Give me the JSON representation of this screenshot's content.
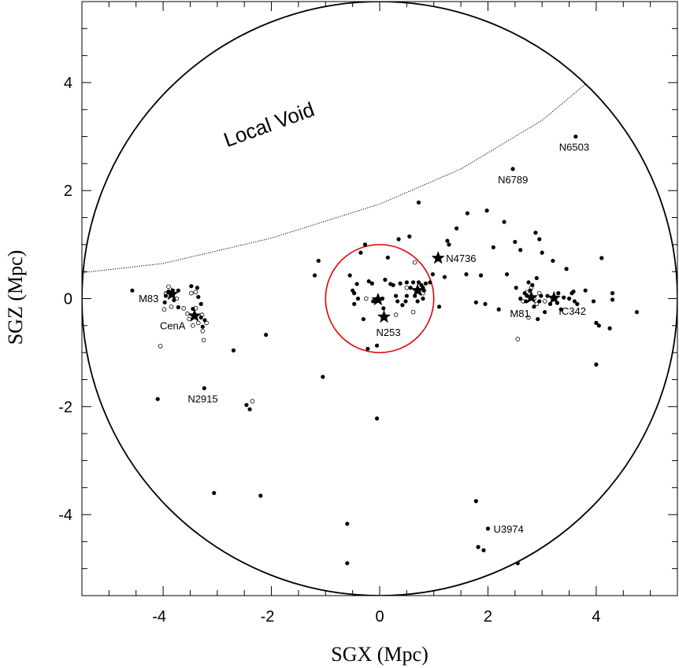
{
  "chart_data": {
    "type": "scatter",
    "title": "",
    "xlabel": "SGX (Mpc)",
    "ylabel": "SGZ (Mpc)",
    "xlim": [
      -5.5,
      5.5
    ],
    "ylim": [
      -5.5,
      5.5
    ],
    "x_ticks": [
      "-4",
      "-2",
      "0",
      "2",
      "4"
    ],
    "y_ticks": [
      "-4",
      "-2",
      "0",
      "2",
      "4"
    ],
    "x_tick_values": [
      -4,
      -2,
      0,
      2,
      4
    ],
    "y_tick_values": [
      -4,
      -2,
      0,
      2,
      4
    ],
    "grid": false,
    "annotation": "Local Void",
    "reference_circles": [
      {
        "center": [
          0,
          0
        ],
        "radius": 5.5,
        "color": "#000000"
      },
      {
        "center": [
          0,
          0
        ],
        "radius": 1.0,
        "color": "#e00000"
      }
    ],
    "void_boundary": [
      [
        -5.5,
        0.48
      ],
      [
        -4,
        0.65
      ],
      [
        -2,
        1.12
      ],
      [
        0,
        1.75
      ],
      [
        1.5,
        2.4
      ],
      [
        3,
        3.3
      ],
      [
        3.8,
        3.97
      ]
    ],
    "named_galaxies": [
      {
        "label": "M83",
        "x": -3.84,
        "y": 0.08,
        "marker": "star"
      },
      {
        "label": "CenA",
        "x": -3.42,
        "y": -0.32,
        "marker": "star"
      },
      {
        "label": "N253",
        "x": 0.08,
        "y": -0.34,
        "marker": "star"
      },
      {
        "label": "N4736",
        "x": 1.08,
        "y": 0.75,
        "marker": "star"
      },
      {
        "label": "M81",
        "x": 2.8,
        "y": 0.02,
        "marker": "star"
      },
      {
        "label": "IC342",
        "x": 3.22,
        "y": 0.01,
        "marker": "star"
      },
      {
        "label": "N6503",
        "x": 3.62,
        "y": 3.0,
        "marker": "dot"
      },
      {
        "label": "N6789",
        "x": 2.46,
        "y": 2.4,
        "marker": "dot"
      },
      {
        "label": "N2915",
        "x": -3.24,
        "y": -1.66,
        "marker": "dot"
      },
      {
        "label": "U3974",
        "x": 2.0,
        "y": -4.26,
        "marker": "dot"
      }
    ],
    "unlabeled_stars": [
      [
        -0.03,
        -0.02
      ],
      [
        0.7,
        0.15
      ]
    ],
    "filled_points": [
      [
        -4.57,
        0.15
      ],
      [
        -4.1,
        -1.86
      ],
      [
        -3.97,
        -0.07
      ],
      [
        -3.95,
        0.05
      ],
      [
        -3.9,
        0.13
      ],
      [
        -3.82,
        0.15
      ],
      [
        -3.8,
        -0.03
      ],
      [
        -3.72,
        0.15
      ],
      [
        -3.72,
        -0.16
      ],
      [
        -3.48,
        0.23
      ],
      [
        -3.45,
        -0.19
      ],
      [
        -3.37,
        0.2
      ],
      [
        -3.35,
        0.03
      ],
      [
        -3.3,
        -0.1
      ],
      [
        -3.3,
        -0.35
      ],
      [
        -3.27,
        -0.52
      ],
      [
        -3.23,
        -0.4
      ],
      [
        -3.06,
        -3.6
      ],
      [
        -2.7,
        -0.96
      ],
      [
        -2.46,
        -1.97
      ],
      [
        -2.4,
        -2.05
      ],
      [
        -2.2,
        -3.65
      ],
      [
        -2.1,
        -0.67
      ],
      [
        -1.2,
        0.43
      ],
      [
        -1.13,
        0.7
      ],
      [
        -1.05,
        -1.45
      ],
      [
        -0.6,
        -4.17
      ],
      [
        -0.6,
        -4.9
      ],
      [
        -0.55,
        0.43
      ],
      [
        -0.5,
        0.15
      ],
      [
        -0.47,
        0.1
      ],
      [
        -0.47,
        -0.1
      ],
      [
        -0.42,
        0.27
      ],
      [
        -0.4,
        0.0
      ],
      [
        -0.35,
        0.85
      ],
      [
        -0.3,
        -0.38
      ],
      [
        -0.27,
        1.0
      ],
      [
        -0.22,
        -0.93
      ],
      [
        -0.2,
        0.32
      ],
      [
        -0.14,
        0.28
      ],
      [
        -0.12,
        -0.05
      ],
      [
        -0.05,
        -0.87
      ],
      [
        -0.05,
        -2.22
      ],
      [
        0.05,
        0.0
      ],
      [
        0.07,
        -0.18
      ],
      [
        0.1,
        0.35
      ],
      [
        0.15,
        0.76
      ],
      [
        0.2,
        0.27
      ],
      [
        0.25,
        0.25
      ],
      [
        0.3,
        0.05
      ],
      [
        0.33,
        -0.05
      ],
      [
        0.35,
        1.1
      ],
      [
        0.38,
        0.28
      ],
      [
        0.42,
        -0.12
      ],
      [
        0.48,
        -0.05
      ],
      [
        0.5,
        0.05
      ],
      [
        0.5,
        0.3
      ],
      [
        0.55,
        1.15
      ],
      [
        0.57,
        0.2
      ],
      [
        0.62,
        0.3
      ],
      [
        0.65,
        0.05
      ],
      [
        0.7,
        -0.05
      ],
      [
        0.72,
        1.78
      ],
      [
        0.72,
        0.3
      ],
      [
        0.77,
        0.25
      ],
      [
        0.8,
        0.0
      ],
      [
        0.8,
        0.2
      ],
      [
        0.82,
        0.15
      ],
      [
        0.85,
        0.28
      ],
      [
        0.93,
        0.3
      ],
      [
        0.98,
        0.45
      ],
      [
        1.1,
        -0.15
      ],
      [
        1.2,
        0.4
      ],
      [
        1.25,
        1.07
      ],
      [
        1.28,
        1.0
      ],
      [
        1.42,
        1.3
      ],
      [
        1.6,
        0.45
      ],
      [
        1.62,
        1.58
      ],
      [
        1.78,
        -0.07
      ],
      [
        1.78,
        -3.75
      ],
      [
        1.82,
        -4.6
      ],
      [
        1.87,
        0.43
      ],
      [
        1.92,
        -4.66
      ],
      [
        1.95,
        -0.1
      ],
      [
        1.98,
        1.63
      ],
      [
        2.1,
        0.95
      ],
      [
        2.2,
        -0.2
      ],
      [
        2.3,
        1.42
      ],
      [
        2.35,
        0.45
      ],
      [
        2.5,
        1.05
      ],
      [
        2.52,
        0.2
      ],
      [
        2.6,
        0.9
      ],
      [
        2.6,
        0.0
      ],
      [
        2.55,
        -4.9
      ],
      [
        2.72,
        0.05
      ],
      [
        2.75,
        0.3
      ],
      [
        2.78,
        0.15
      ],
      [
        2.82,
        0.25
      ],
      [
        2.85,
        -0.15
      ],
      [
        2.88,
        1.22
      ],
      [
        2.9,
        0.38
      ],
      [
        2.92,
        -0.38
      ],
      [
        2.95,
        1.1
      ],
      [
        2.98,
        0.05
      ],
      [
        3.0,
        0.85
      ],
      [
        3.05,
        -0.25
      ],
      [
        3.1,
        0.05
      ],
      [
        3.15,
        -0.1
      ],
      [
        3.28,
        -0.08
      ],
      [
        3.3,
        0.1
      ],
      [
        3.35,
        -0.2
      ],
      [
        3.4,
        0.02
      ],
      [
        3.45,
        0.55
      ],
      [
        3.5,
        0.0
      ],
      [
        3.55,
        0.1
      ],
      [
        3.6,
        -0.05
      ],
      [
        3.65,
        -0.1
      ],
      [
        3.8,
        0.15
      ],
      [
        3.95,
        -0.05
      ],
      [
        4.0,
        -0.45
      ],
      [
        4.0,
        -1.22
      ],
      [
        4.05,
        -0.5
      ],
      [
        4.1,
        0.75
      ],
      [
        4.25,
        -0.55
      ],
      [
        4.3,
        0.1
      ],
      [
        4.75,
        -0.25
      ],
      [
        4.3,
        -0.02
      ],
      [
        3.2,
        0.7
      ],
      [
        3.58,
        0.13
      ],
      [
        2.68,
        0.1
      ],
      [
        2.7,
        -0.05
      ],
      [
        2.95,
        -0.05
      ]
    ],
    "open_points": [
      [
        -4.05,
        -0.88
      ],
      [
        -3.98,
        -0.2
      ],
      [
        -3.95,
        0.1
      ],
      [
        -3.9,
        0.22
      ],
      [
        -3.85,
        -0.15
      ],
      [
        -3.75,
        0.0
      ],
      [
        -3.62,
        -0.18
      ],
      [
        -3.55,
        -0.28
      ],
      [
        -3.52,
        -0.38
      ],
      [
        -3.48,
        0.1
      ],
      [
        -3.45,
        -0.5
      ],
      [
        -3.4,
        0.12
      ],
      [
        -3.4,
        -0.18
      ],
      [
        -3.35,
        -0.45
      ],
      [
        -3.28,
        -0.3
      ],
      [
        -3.27,
        -0.6
      ],
      [
        -3.25,
        -0.77
      ],
      [
        -3.2,
        -0.45
      ],
      [
        -2.35,
        -1.9
      ],
      [
        -0.25,
        0.0
      ],
      [
        0.3,
        -0.3
      ],
      [
        0.5,
        0.2
      ],
      [
        0.62,
        -0.25
      ],
      [
        0.65,
        0.67
      ],
      [
        0.8,
        0.1
      ],
      [
        2.55,
        -0.75
      ],
      [
        2.65,
        -0.05
      ],
      [
        2.72,
        0.12
      ],
      [
        2.8,
        0.2
      ],
      [
        2.85,
        0.0
      ],
      [
        2.9,
        -0.1
      ],
      [
        2.95,
        0.1
      ],
      [
        2.75,
        -0.35
      ],
      [
        3.05,
        -0.05
      ]
    ]
  }
}
